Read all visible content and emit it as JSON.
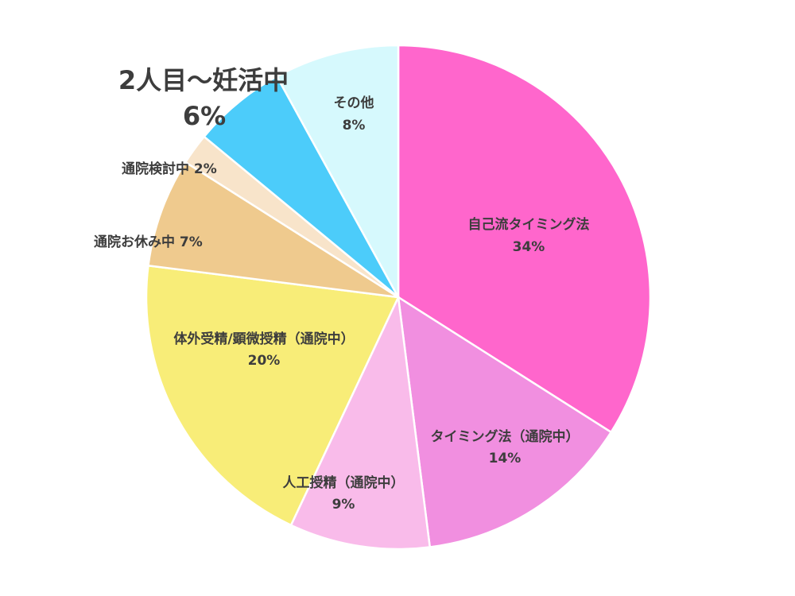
{
  "chart_data": {
    "type": "pie",
    "start_angle_deg": 0,
    "direction": "clockwise",
    "slices": [
      {
        "label": "自己流タイミング法",
        "value": 34,
        "value_text": "34%",
        "color": "#ff66cc"
      },
      {
        "label": "タイミング法（通院中）",
        "value": 14,
        "value_text": "14%",
        "color": "#f18fe0"
      },
      {
        "label": "人工授精（通院中）",
        "value": 9,
        "value_text": "9%",
        "color": "#f9bbea"
      },
      {
        "label": "体外受精/顕微授精（通院中）",
        "value": 20,
        "value_text": "20%",
        "color": "#f8ed78"
      },
      {
        "label": "通院お休み中",
        "value": 7,
        "value_text": "7%",
        "color": "#efca8e"
      },
      {
        "label": "通院検討中",
        "value": 2,
        "value_text": "2%",
        "color": "#f8e4ca"
      },
      {
        "label": "2人目～妊活中",
        "value": 6,
        "value_text": "6%",
        "color": "#4cccfa"
      },
      {
        "label": "その他",
        "value": 8,
        "value_text": "8%",
        "color": "#d6f9fd"
      }
    ]
  }
}
